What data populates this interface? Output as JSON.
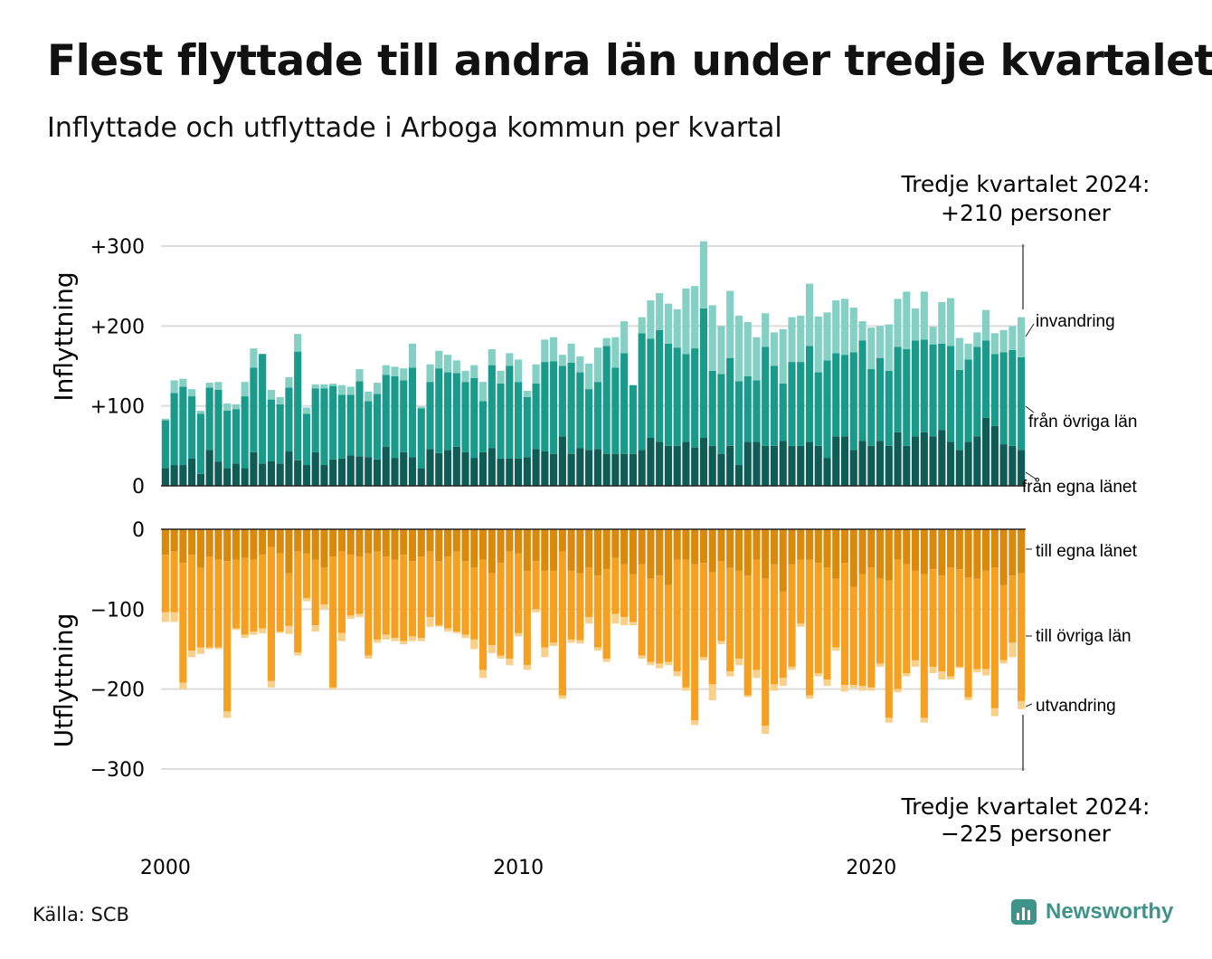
{
  "title": "Flest flyttade till andra län under tredje kvartalet",
  "subtitle": "Inflyttade och utflyttade i Arboga kommun per kvartal",
  "source": "Källa: SCB",
  "brand": "Newsworthy",
  "colors": {
    "in_egna": "#0e5c55",
    "in_ovriga": "#1a9a8a",
    "in_invandring": "#84d0c4",
    "ut_egna": "#d98a0d",
    "ut_ovriga": "#f5a020",
    "ut_utvandring": "#f8d08a",
    "grid": "#dcdcdc",
    "brand": "#3e9488"
  },
  "chart_data": {
    "type": "bar",
    "stacked": true,
    "x_start": "2000 Q1",
    "x_ticks": [
      "2000",
      "2010",
      "2020"
    ],
    "panels": [
      {
        "ylabel": "Inflyttning",
        "y_ticks": [
          "0",
          "+100",
          "+200",
          "+300"
        ],
        "ylim": [
          0,
          300
        ],
        "annotation": "Tredje kvartalet 2024:\n+210 personer",
        "series": [
          {
            "name": "från egna länet",
            "values": [
              22,
              26,
              26,
              34,
              15,
              45,
              30,
              22,
              28,
              22,
              42,
              28,
              31,
              28,
              43,
              32,
              26,
              42,
              26,
              33,
              34,
              38,
              37,
              36,
              33,
              49,
              35,
              42,
              36,
              22,
              46,
              41,
              45,
              49,
              42,
              35,
              42,
              47,
              34,
              34,
              34,
              36,
              46,
              43,
              40,
              62,
              40,
              47,
              45,
              46,
              40,
              40,
              40,
              40,
              45,
              60,
              55,
              50,
              50,
              55,
              48,
              60,
              50,
              40,
              50,
              26,
              55,
              55,
              50,
              50,
              56,
              50,
              50,
              55,
              50,
              35,
              62,
              62,
              45,
              56,
              50,
              56,
              50,
              67,
              50,
              62,
              67,
              62,
              70,
              55,
              45,
              55,
              62,
              85,
              75,
              52,
              50,
              45
            ]
          },
          {
            "name": "från övriga län",
            "values": [
              60,
              90,
              98,
              78,
              75,
              78,
              90,
              72,
              68,
              90,
              106,
              137,
              77,
              74,
              80,
              136,
              64,
              80,
              96,
              92,
              80,
              76,
              94,
              70,
              82,
              90,
              102,
              90,
              112,
              75,
              84,
              106,
              97,
              92,
              88,
              100,
              64,
              104,
              94,
              116,
              96,
              75,
              82,
              112,
              116,
              88,
              114,
              95,
              76,
              84,
              135,
              108,
              126,
              86,
              146,
              124,
              140,
              128,
              123,
              110,
              124,
              162,
              94,
              100,
              110,
              105,
              82,
              77,
              124,
              100,
              72,
              105,
              105,
              120,
              92,
              122,
              104,
              102,
              122,
              126,
              96,
              104,
              94,
              107,
              121,
              120,
              116,
              115,
              108,
              120,
              100,
              103,
              112,
              97,
              90,
              115,
              120,
              116
            ]
          },
          {
            "name": "invandring",
            "values": [
              2,
              16,
              10,
              9,
              4,
              6,
              10,
              9,
              6,
              18,
              24,
              0,
              12,
              9,
              13,
              22,
              8,
              5,
              5,
              3,
              12,
              10,
              15,
              12,
              14,
              12,
              12,
              15,
              30,
              2,
              22,
              22,
              22,
              16,
              14,
              16,
              24,
              20,
              16,
              16,
              28,
              8,
              24,
              28,
              30,
              14,
              24,
              20,
              32,
              43,
              10,
              38,
              40,
              0,
              20,
              48,
              46,
              50,
              48,
              82,
              78,
              84,
              82,
              60,
              84,
              82,
              68,
              54,
              42,
              42,
              68,
              56,
              58,
              78,
              70,
              60,
              66,
              70,
              56,
              24,
              52,
              40,
              58,
              60,
              72,
              40,
              60,
              22,
              52,
              60,
              40,
              20,
              18,
              38,
              26,
              28,
              30,
              50
            ]
          }
        ]
      },
      {
        "ylabel": "Utflyttning",
        "y_ticks": [
          "0",
          "−100",
          "−200",
          "−300"
        ],
        "ylim": [
          -300,
          0
        ],
        "annotation": "Tredje kvartalet 2024:\n−225 personer",
        "series": [
          {
            "name": "till egna länet",
            "values": [
              -32,
              -28,
              -42,
              -32,
              -48,
              -34,
              -38,
              -40,
              -38,
              -36,
              -38,
              -32,
              -22,
              -30,
              -55,
              -28,
              -30,
              -38,
              -48,
              -34,
              -28,
              -32,
              -34,
              -30,
              -28,
              -34,
              -38,
              -32,
              -40,
              -34,
              -28,
              -40,
              -34,
              -28,
              -40,
              -48,
              -38,
              -55,
              -42,
              -28,
              -30,
              -52,
              -40,
              -52,
              -52,
              -28,
              -52,
              -55,
              -48,
              -58,
              -50,
              -36,
              -44,
              -56,
              -44,
              -62,
              -58,
              -70,
              -38,
              -38,
              -44,
              -42,
              -54,
              -40,
              -48,
              -52,
              -58,
              -38,
              -62,
              -44,
              -78,
              -44,
              -38,
              -38,
              -42,
              -48,
              -62,
              -42,
              -72,
              -56,
              -48,
              -62,
              -64,
              -38,
              -44,
              -52,
              -56,
              -50,
              -58,
              -48,
              -50,
              -60,
              -62,
              -52,
              -48,
              -70,
              -58,
              -55
            ]
          },
          {
            "name": "till övriga län",
            "values": [
              -72,
              -76,
              -150,
              -120,
              -100,
              -114,
              -110,
              -188,
              -86,
              -96,
              -90,
              -92,
              -168,
              -98,
              -66,
              -126,
              -56,
              -82,
              -46,
              -164,
              -102,
              -76,
              -72,
              -128,
              -110,
              -98,
              -98,
              -108,
              -94,
              -102,
              -82,
              -80,
              -90,
              -100,
              -92,
              -90,
              -138,
              -90,
              -116,
              -134,
              -100,
              -118,
              -60,
              -96,
              -90,
              -180,
              -86,
              -84,
              -62,
              -90,
              -112,
              -70,
              -66,
              -60,
              -114,
              -104,
              -110,
              -96,
              -140,
              -160,
              -195,
              -118,
              -140,
              -100,
              -130,
              -110,
              -150,
              -138,
              -184,
              -150,
              -108,
              -128,
              -80,
              -170,
              -138,
              -140,
              -86,
              -153,
              -123,
              -140,
              -150,
              -106,
              -172,
              -162,
              -136,
              -112,
              -180,
              -122,
              -120,
              -136,
              -122,
              -150,
              -113,
              -123,
              -176,
              -94,
              -84,
              -160
            ]
          },
          {
            "name": "utvandring",
            "values": [
              -12,
              -12,
              -8,
              -8,
              -8,
              -2,
              -2,
              -8,
              -2,
              -4,
              -4,
              -6,
              -8,
              -2,
              -10,
              -4,
              -4,
              -8,
              -6,
              -2,
              -10,
              -4,
              -4,
              -4,
              -4,
              -6,
              -4,
              -4,
              -6,
              -4,
              -12,
              -2,
              -4,
              -2,
              -4,
              -12,
              -10,
              -10,
              -4,
              -8,
              -4,
              -6,
              -4,
              -12,
              -4,
              -4,
              -4,
              -4,
              -8,
              -4,
              -4,
              -12,
              -10,
              -4,
              -4,
              -4,
              -6,
              -4,
              -6,
              -4,
              -6,
              -4,
              -20,
              -4,
              -6,
              -8,
              -2,
              -10,
              -10,
              -8,
              -10,
              -4,
              -4,
              -4,
              -4,
              -8,
              -4,
              -8,
              -4,
              -6,
              -4,
              -4,
              -6,
              -4,
              -4,
              -8,
              -6,
              -8,
              -10,
              -4,
              -2,
              -4,
              -4,
              -8,
              -10,
              -4,
              -18,
              -10
            ]
          }
        ]
      }
    ]
  }
}
